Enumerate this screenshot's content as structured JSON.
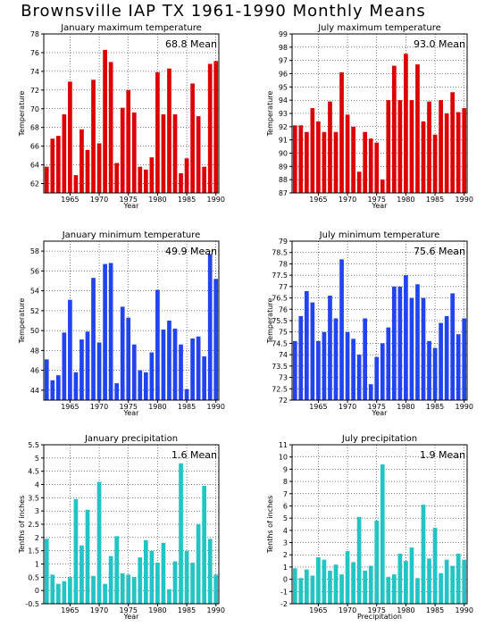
{
  "page_title": "Brownsville IAP TX  1961-1990 Monthly Means",
  "chart_data": [
    {
      "type": "bar",
      "title": "January maximum temperature",
      "xlabel": "Year",
      "ylabel": "Temperature",
      "mean_label": "68.8 Mean",
      "color": "#dd0000",
      "xlim": [
        1960.5,
        1990.5
      ],
      "ylim": [
        61,
        78
      ],
      "yticks": [
        62,
        64,
        66,
        68,
        70,
        72,
        74,
        76,
        78
      ],
      "xticks": [
        1965,
        1970,
        1975,
        1980,
        1985,
        1990
      ],
      "grid": true,
      "x": [
        1961,
        1962,
        1963,
        1964,
        1965,
        1966,
        1967,
        1968,
        1969,
        1970,
        1971,
        1972,
        1973,
        1974,
        1975,
        1976,
        1977,
        1978,
        1979,
        1980,
        1981,
        1982,
        1983,
        1984,
        1985,
        1986,
        1987,
        1988,
        1989,
        1990
      ],
      "values": [
        63.8,
        66.8,
        67.1,
        69.4,
        72.9,
        62.9,
        67.8,
        65.6,
        73.1,
        66.3,
        76.3,
        75.0,
        64.2,
        70.1,
        72.0,
        69.6,
        63.8,
        63.5,
        64.8,
        73.9,
        69.4,
        74.3,
        69.4,
        63.1,
        64.7,
        72.7,
        69.2,
        63.8,
        74.8,
        75.1
      ]
    },
    {
      "type": "bar",
      "title": "July maximum temperature",
      "xlabel": "Year",
      "ylabel": "Temperature",
      "mean_label": "93.0 Mean",
      "color": "#dd0000",
      "xlim": [
        1960.5,
        1990.5
      ],
      "ylim": [
        87,
        99
      ],
      "yticks": [
        87,
        88,
        89,
        90,
        91,
        92,
        93,
        94,
        95,
        96,
        97,
        98,
        99
      ],
      "xticks": [
        1965,
        1970,
        1975,
        1980,
        1985,
        1990
      ],
      "grid": true,
      "x": [
        1961,
        1962,
        1963,
        1964,
        1965,
        1966,
        1967,
        1968,
        1969,
        1970,
        1971,
        1972,
        1973,
        1974,
        1975,
        1976,
        1977,
        1978,
        1979,
        1980,
        1981,
        1982,
        1983,
        1984,
        1985,
        1986,
        1987,
        1988,
        1989,
        1990
      ],
      "values": [
        92.1,
        92.1,
        91.6,
        93.4,
        92.4,
        91.6,
        93.9,
        91.6,
        96.1,
        92.9,
        92.0,
        88.6,
        91.6,
        91.1,
        90.8,
        88.0,
        94.0,
        96.6,
        94.0,
        97.5,
        94.0,
        96.7,
        92.4,
        93.9,
        91.4,
        94.0,
        93.0,
        94.6,
        93.1,
        93.4
      ]
    },
    {
      "type": "bar",
      "title": "January minimum temperature",
      "xlabel": "Year",
      "ylabel": "Temperature",
      "mean_label": "49.9 Mean",
      "color": "#2244ee",
      "xlim": [
        1960.5,
        1990.5
      ],
      "ylim": [
        43,
        59
      ],
      "yticks": [
        44,
        46,
        48,
        50,
        52,
        54,
        56,
        58
      ],
      "xticks": [
        1965,
        1970,
        1975,
        1980,
        1985,
        1990
      ],
      "grid": true,
      "x": [
        1961,
        1962,
        1963,
        1964,
        1965,
        1966,
        1967,
        1968,
        1969,
        1970,
        1971,
        1972,
        1973,
        1974,
        1975,
        1976,
        1977,
        1978,
        1979,
        1980,
        1981,
        1982,
        1983,
        1984,
        1985,
        1986,
        1987,
        1988,
        1989,
        1990
      ],
      "values": [
        47.1,
        45.0,
        45.5,
        49.8,
        53.1,
        45.8,
        49.1,
        49.9,
        55.3,
        48.8,
        56.7,
        56.8,
        44.7,
        52.4,
        51.3,
        48.6,
        46.0,
        45.8,
        47.8,
        54.1,
        50.1,
        51.0,
        50.2,
        48.6,
        44.1,
        49.2,
        49.4,
        47.4,
        57.7,
        55.2
      ]
    },
    {
      "type": "bar",
      "title": "July minimum temperature",
      "xlabel": "Year",
      "ylabel": "Temperature",
      "mean_label": "75.6 Mean",
      "color": "#2244ee",
      "xlim": [
        1960.5,
        1990.5
      ],
      "ylim": [
        72,
        79
      ],
      "yticks": [
        72,
        72.5,
        73,
        73.5,
        74,
        74.5,
        75,
        75.5,
        76,
        76.5,
        77,
        77.5,
        78,
        78.5,
        79
      ],
      "xticks": [
        1965,
        1970,
        1975,
        1980,
        1985,
        1990
      ],
      "grid": true,
      "x": [
        1961,
        1962,
        1963,
        1964,
        1965,
        1966,
        1967,
        1968,
        1969,
        1970,
        1971,
        1972,
        1973,
        1974,
        1975,
        1976,
        1977,
        1978,
        1979,
        1980,
        1981,
        1982,
        1983,
        1984,
        1985,
        1986,
        1987,
        1988,
        1989,
        1990
      ],
      "values": [
        74.6,
        75.7,
        76.8,
        76.3,
        74.6,
        75.0,
        76.6,
        75.6,
        78.2,
        75.0,
        74.7,
        74.0,
        75.6,
        72.7,
        73.9,
        74.5,
        75.2,
        77.0,
        77.0,
        77.5,
        76.5,
        77.1,
        76.5,
        74.6,
        74.3,
        75.4,
        75.7,
        76.7,
        74.9,
        75.6
      ]
    },
    {
      "type": "bar",
      "title": "January precipitation",
      "xlabel": "Year",
      "ylabel": "Tenths of inches",
      "mean_label": "1.6 Mean",
      "color": "#22c4c4",
      "xlim": [
        1960.5,
        1990.5
      ],
      "ylim": [
        -0.5,
        5.5
      ],
      "yticks": [
        -0.5,
        0,
        0.5,
        1,
        1.5,
        2,
        2.5,
        3,
        3.5,
        4,
        4.5,
        5,
        5.5
      ],
      "xticks": [
        1965,
        1970,
        1975,
        1980,
        1985,
        1990
      ],
      "grid": true,
      "x": [
        1961,
        1962,
        1963,
        1964,
        1965,
        1966,
        1967,
        1968,
        1969,
        1970,
        1971,
        1972,
        1973,
        1974,
        1975,
        1976,
        1977,
        1978,
        1979,
        1980,
        1981,
        1982,
        1983,
        1984,
        1985,
        1986,
        1987,
        1988,
        1989,
        1990
      ],
      "values": [
        1.95,
        0.6,
        0.25,
        0.35,
        0.5,
        3.45,
        1.7,
        3.05,
        0.55,
        4.1,
        0.25,
        1.3,
        2.05,
        0.65,
        0.6,
        0.5,
        1.25,
        1.9,
        1.5,
        1.05,
        1.8,
        0.05,
        1.1,
        4.8,
        1.5,
        1.05,
        2.5,
        3.95,
        1.95,
        0.6
      ]
    },
    {
      "type": "bar",
      "title": "July precipitation",
      "xlabel": "Precipitation",
      "ylabel": "Tenths of inches",
      "mean_label": "1.9 Mean",
      "color": "#22c4c4",
      "xlim": [
        1960.5,
        1990.5
      ],
      "ylim": [
        -2,
        11
      ],
      "yticks": [
        -2,
        -1,
        0,
        1,
        2,
        3,
        4,
        5,
        6,
        7,
        8,
        9,
        10,
        11
      ],
      "xticks": [
        1965,
        1970,
        1975,
        1980,
        1985,
        1990
      ],
      "grid": true,
      "x": [
        1961,
        1962,
        1963,
        1964,
        1965,
        1966,
        1967,
        1968,
        1969,
        1970,
        1971,
        1972,
        1973,
        1974,
        1975,
        1976,
        1977,
        1978,
        1979,
        1980,
        1981,
        1982,
        1983,
        1984,
        1985,
        1986,
        1987,
        1988,
        1989,
        1990
      ],
      "values": [
        0.9,
        0.1,
        0.8,
        0.3,
        1.8,
        1.6,
        0.7,
        1.2,
        0.4,
        2.3,
        1.4,
        5.1,
        0.7,
        1.1,
        4.8,
        9.4,
        0.2,
        0.4,
        2.1,
        1.5,
        2.6,
        0.1,
        6.1,
        1.7,
        4.2,
        0.5,
        1.6,
        1.1,
        2.1,
        1.6
      ]
    }
  ]
}
